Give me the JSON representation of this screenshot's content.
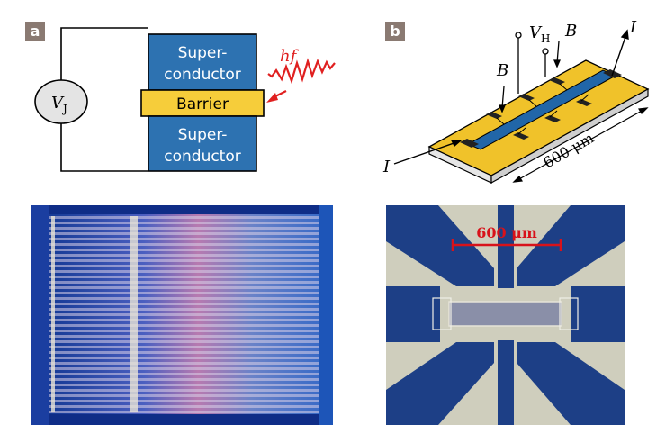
{
  "panel_a": {
    "tag": "a",
    "voltage_symbol": "V",
    "voltage_subscript": "J",
    "superconductor_top_line1": "Super-",
    "superconductor_top_line2": "conductor",
    "barrier_label": "Barrier",
    "superconductor_bottom_line1": "Super-",
    "superconductor_bottom_line2": "conductor",
    "photon_label": "hf"
  },
  "panel_b": {
    "tag": "b",
    "hall_voltage_symbol": "V",
    "hall_voltage_subscript": "H",
    "field_label_left": "B",
    "field_label_right": "B",
    "current_label_in": "I",
    "current_label_out": "I",
    "dimension_label": "600 μm"
  },
  "photo_right": {
    "scale_label": "600 μm"
  },
  "colors": {
    "superconductor_blue": "#2d72b1",
    "barrier_yellow": "#f6cd3a",
    "photon_red": "#e02020",
    "tag_background": "#8a7a72",
    "gold": "#f0c22a",
    "chip_photo_blue": "#1d3f86",
    "scale_red": "#d8121a"
  }
}
